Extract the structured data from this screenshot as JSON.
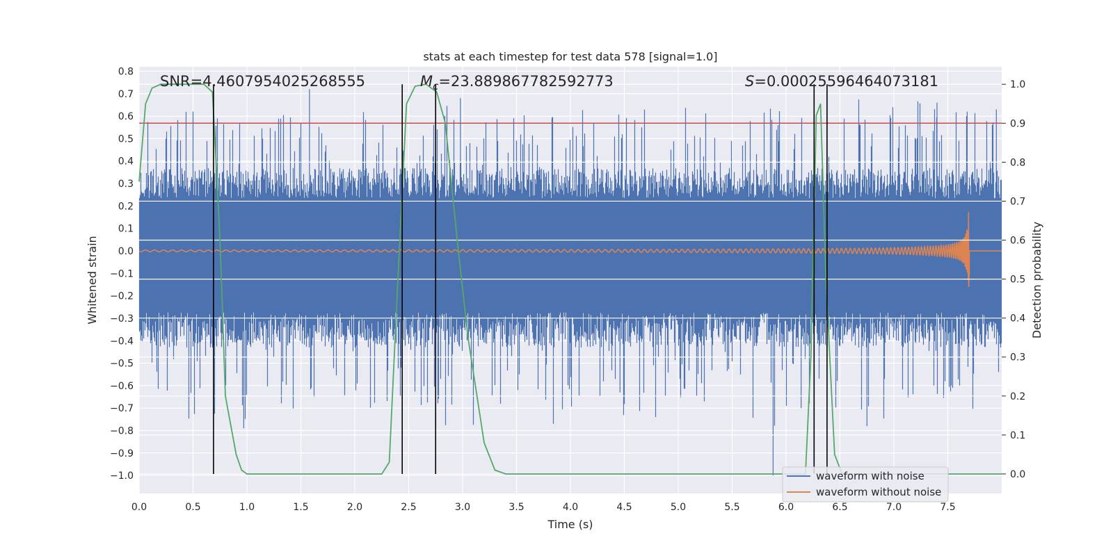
{
  "chart_data": {
    "type": "line",
    "title": "stats at each timestep for test data 578 [signal=1.0]",
    "xlabel": "Time (s)",
    "ylabel": "Whitened strain",
    "y2label": "Detection probability",
    "xlim": [
      0.0,
      8.0
    ],
    "ylim": [
      -1.08,
      0.82
    ],
    "y2lim": [
      -0.05,
      1.045
    ],
    "xticks": [
      "0.0",
      "0.5",
      "1.0",
      "1.5",
      "2.0",
      "2.5",
      "3.0",
      "3.5",
      "4.0",
      "4.5",
      "5.0",
      "5.5",
      "6.0",
      "6.5",
      "7.0",
      "7.5"
    ],
    "yticks": [
      "0.8",
      "0.7",
      "0.6",
      "0.5",
      "0.4",
      "0.3",
      "0.2",
      "0.1",
      "0.0",
      "−0.1",
      "−0.2",
      "−0.3",
      "−0.4",
      "−0.5",
      "−0.6",
      "−0.7",
      "−0.8",
      "−0.9",
      "−1.0"
    ],
    "y2ticks": [
      "1.0",
      "0.9",
      "0.8",
      "0.7",
      "0.6",
      "0.5",
      "0.4",
      "0.3",
      "0.2",
      "0.1",
      "0.0"
    ],
    "annotations": {
      "snr": "SNR=4.4607954025268555",
      "mc_symbol": "M",
      "mc_sub": "c",
      "mc_value": "=23.889867782592773",
      "s_symbol": "S",
      "s_value": "=0.00025596464073181"
    },
    "threshold": 0.9,
    "threshold_color": "#c44e52",
    "detection_boundaries_s": [
      0.69,
      2.44,
      2.75,
      6.26,
      6.38
    ],
    "noise_envelope": {
      "name": "waveform with noise",
      "color": "#4c72b0",
      "typical_upper": 0.3,
      "typical_lower": -0.35,
      "peak_values": [
        {
          "x": 0.5,
          "y": 0.62
        },
        {
          "x": 1.58,
          "y": 0.72
        },
        {
          "x": 2.98,
          "y": 0.68
        },
        {
          "x": 5.88,
          "y": -1.0
        },
        {
          "x": 6.75,
          "y": -0.78
        },
        {
          "x": 7.4,
          "y": 0.66
        },
        {
          "x": 7.68,
          "y": 0.62
        },
        {
          "x": 7.95,
          "y": 0.63
        },
        {
          "x": 0.97,
          "y": -0.79
        },
        {
          "x": 4.46,
          "y": -0.63
        },
        {
          "x": 6.14,
          "y": -0.7
        }
      ]
    },
    "clean_signal": {
      "name": "waveform without noise",
      "color": "#dd8452",
      "merger_time_s": 7.7,
      "peak_amplitude": 0.18
    },
    "probability": {
      "name": "Detection probability",
      "color": "#55a868",
      "points": [
        [
          0.0,
          0.75
        ],
        [
          0.06,
          0.95
        ],
        [
          0.12,
          0.99
        ],
        [
          0.2,
          1.0
        ],
        [
          0.6,
          1.0
        ],
        [
          0.68,
          0.98
        ],
        [
          0.75,
          0.6
        ],
        [
          0.8,
          0.2
        ],
        [
          0.9,
          0.05
        ],
        [
          0.95,
          0.01
        ],
        [
          1.0,
          0.0
        ],
        [
          2.25,
          0.0
        ],
        [
          2.32,
          0.03
        ],
        [
          2.4,
          0.5
        ],
        [
          2.48,
          0.95
        ],
        [
          2.56,
          0.995
        ],
        [
          2.66,
          1.0
        ],
        [
          2.76,
          0.98
        ],
        [
          2.84,
          0.9
        ],
        [
          2.95,
          0.6
        ],
        [
          3.05,
          0.35
        ],
        [
          3.2,
          0.08
        ],
        [
          3.3,
          0.01
        ],
        [
          3.4,
          0.0
        ],
        [
          6.18,
          0.0
        ],
        [
          6.23,
          0.3
        ],
        [
          6.28,
          0.92
        ],
        [
          6.32,
          0.95
        ],
        [
          6.37,
          0.5
        ],
        [
          6.45,
          0.05
        ],
        [
          6.52,
          0.0
        ],
        [
          8.0,
          0.0
        ]
      ]
    },
    "legend": {
      "placement": "lower right",
      "entries": [
        "waveform with noise",
        "waveform without noise"
      ]
    }
  }
}
